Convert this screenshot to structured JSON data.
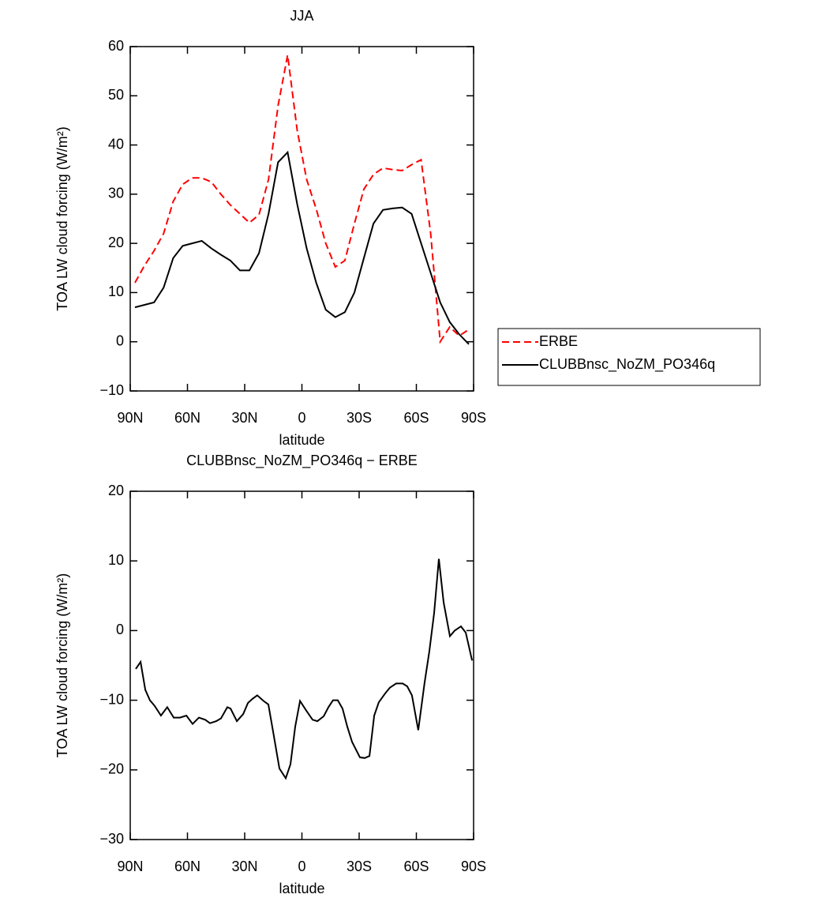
{
  "chart_data": [
    {
      "type": "line",
      "title": "JJA",
      "xlabel": "latitude",
      "ylabel": "TOA LW cloud forcing (W/m²)",
      "xlim": [
        90,
        -90
      ],
      "ylim": [
        -10,
        60
      ],
      "xticks": [
        {
          "value": 90,
          "label": "90N"
        },
        {
          "value": 60,
          "label": "60N"
        },
        {
          "value": 30,
          "label": "30N"
        },
        0,
        {
          "value": -30,
          "label": "30S"
        },
        {
          "value": -60,
          "label": "60S"
        },
        {
          "value": -90,
          "label": "90S"
        }
      ],
      "yticks": [
        {
          "value": -10,
          "label": "−10"
        },
        0,
        10,
        20,
        30,
        40,
        50,
        60
      ],
      "legend": "right",
      "x": [
        87.5,
        82.5,
        77.5,
        72.5,
        67.5,
        62.5,
        57.5,
        52.5,
        47.5,
        42.5,
        37.5,
        32.5,
        27.5,
        22.5,
        17.5,
        12.5,
        7.5,
        2.5,
        -2.5,
        -7.5,
        -12.5,
        -17.5,
        -22.5,
        -27.5,
        -32.5,
        -37.5,
        -42.5,
        -47.5,
        -52.5,
        -57.5,
        -62.5,
        -67.5,
        -72.5,
        -77.5,
        -82.5,
        -87.5
      ],
      "series": [
        {
          "name": "ERBE",
          "color": "#ff0000",
          "dashed": true,
          "values": [
            12,
            15.5,
            18.5,
            22,
            28.5,
            32,
            33.3,
            33.3,
            32.5,
            30,
            27.8,
            26,
            24.2,
            25.8,
            33,
            48,
            58.3,
            43,
            33,
            27,
            20,
            15.2,
            16.5,
            24,
            31,
            34,
            35.3,
            35,
            34.8,
            36,
            37,
            22,
            0,
            3,
            1.2,
            2.5
          ]
        },
        {
          "name": "CLUBBnsc_NoZM_PO346q",
          "color": "#000000",
          "dashed": false,
          "values": [
            7,
            7.5,
            8,
            11,
            17,
            19.5,
            20,
            20.5,
            19,
            17.7,
            16.5,
            14.5,
            14.5,
            18,
            26,
            36.5,
            38.5,
            28,
            19,
            12,
            6.5,
            5,
            6,
            10,
            17,
            24,
            26.8,
            27.1,
            27.3,
            26,
            20,
            14,
            8,
            4,
            1.5,
            -0.5
          ]
        }
      ]
    },
    {
      "type": "line",
      "title": "CLUBBnsc_NoZM_PO346q − ERBE",
      "xlabel": "latitude",
      "ylabel": "TOA LW cloud forcing (W/m²)",
      "xlim": [
        90,
        -90
      ],
      "ylim": [
        -30,
        20
      ],
      "xticks": [
        {
          "value": 90,
          "label": "90N"
        },
        {
          "value": 60,
          "label": "60N"
        },
        {
          "value": 30,
          "label": "30N"
        },
        0,
        {
          "value": -30,
          "label": "30S"
        },
        {
          "value": -60,
          "label": "60S"
        },
        {
          "value": -90,
          "label": "90S"
        }
      ],
      "yticks": [
        {
          "value": -30,
          "label": "−30"
        },
        {
          "value": -20,
          "label": "−20"
        },
        {
          "value": -10,
          "label": "−10"
        },
        0,
        10,
        20
      ],
      "x": [
        87.1,
        84.6,
        82.1,
        79.7,
        77.2,
        73.9,
        70.6,
        67.2,
        63.9,
        60.6,
        57.3,
        54.0,
        50.7,
        48.2,
        44.9,
        42.4,
        39.1,
        37.4,
        34.1,
        30.8,
        28.3,
        25.9,
        23.4,
        20.1,
        17.6,
        15.1,
        11.8,
        8.5,
        6.0,
        3.5,
        1.0,
        -2.3,
        -5.6,
        -8.1,
        -11.4,
        -13.9,
        -16.3,
        -18.8,
        -21.3,
        -23.8,
        -26.3,
        -30.4,
        -32.9,
        -35.4,
        -37.9,
        -40.3,
        -43.7,
        -46.1,
        -49.4,
        -52.8,
        -55.2,
        -57.7,
        -61.0,
        -64.3,
        -66.8,
        -69.3,
        -71.8,
        -74.3,
        -77.6,
        -80.1,
        -83.4,
        -85.9,
        -89.2
      ],
      "series": [
        {
          "color": "#000000",
          "dashed": false,
          "values": [
            -5.5,
            -4.5,
            -8.5,
            -10,
            -10.8,
            -12.2,
            -11,
            -12.5,
            -12.5,
            -12.2,
            -13.4,
            -12.5,
            -12.8,
            -13.3,
            -13,
            -12.6,
            -11,
            -11.2,
            -13,
            -12,
            -10.4,
            -9.8,
            -9.3,
            -10.1,
            -10.6,
            -14.5,
            -19.8,
            -21.2,
            -19.2,
            -13.8,
            -10.1,
            -11.5,
            -12.8,
            -13,
            -12.3,
            -11,
            -10,
            -10,
            -11.2,
            -13.8,
            -16,
            -18.2,
            -18.3,
            -18,
            -12.2,
            -10.3,
            -9,
            -8.2,
            -7.6,
            -7.6,
            -8,
            -9.3,
            -14.3,
            -7.5,
            -3,
            2.5,
            10.3,
            4,
            -0.8,
            0,
            0.6,
            -0.3,
            -4.3
          ]
        }
      ]
    }
  ]
}
